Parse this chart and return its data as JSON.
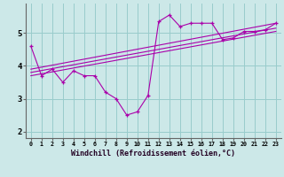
{
  "xlabel": "Windchill (Refroidissement éolien,°C)",
  "background_color": "#cce8e8",
  "line_color": "#aa00aa",
  "grid_color": "#99cccc",
  "x_ticks": [
    0,
    1,
    2,
    3,
    4,
    5,
    6,
    7,
    8,
    9,
    10,
    11,
    12,
    13,
    14,
    15,
    16,
    17,
    18,
    19,
    20,
    21,
    22,
    23
  ],
  "ylim": [
    1.8,
    5.9
  ],
  "xlim": [
    -0.5,
    23.5
  ],
  "series": [
    {
      "x": [
        0,
        1,
        2,
        3,
        4,
        5,
        6,
        7,
        8,
        9,
        10,
        11,
        12,
        13,
        14,
        15,
        16,
        17,
        18,
        19,
        20,
        21,
        22,
        23
      ],
      "y": [
        4.6,
        3.7,
        3.9,
        3.5,
        3.85,
        3.7,
        3.7,
        3.2,
        3.0,
        2.5,
        2.6,
        3.1,
        5.35,
        5.55,
        5.2,
        5.3,
        5.3,
        5.3,
        4.8,
        4.85,
        5.05,
        5.05,
        5.1,
        5.3
      ]
    },
    {
      "x": [
        0,
        23
      ],
      "y": [
        3.9,
        5.3
      ]
    },
    {
      "x": [
        0,
        23
      ],
      "y": [
        3.8,
        5.15
      ]
    },
    {
      "x": [
        0,
        23
      ],
      "y": [
        3.7,
        5.05
      ]
    }
  ],
  "series_markers": [
    true,
    false,
    false,
    false
  ]
}
